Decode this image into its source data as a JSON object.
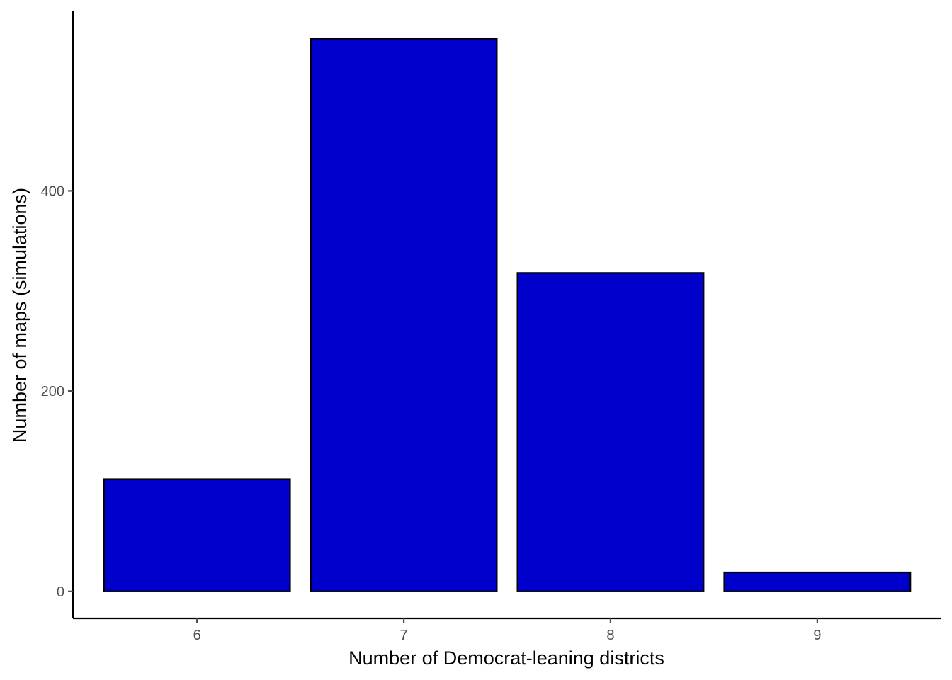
{
  "chart_data": {
    "type": "bar",
    "title": "",
    "xlabel": "Number of Democrat-leaning districts",
    "ylabel": "Number of maps (simulations)",
    "categories": [
      "6",
      "7",
      "8",
      "9"
    ],
    "values": [
      112,
      552,
      318,
      19
    ],
    "yticks": [
      0,
      200,
      400
    ],
    "ylim": [
      -27,
      580
    ],
    "grid": false,
    "legend": "none",
    "colors": {
      "bar_fill": "#0000CD",
      "bar_stroke": "#000000",
      "axis": "#000000",
      "tick_text": "#4d4d4d"
    }
  }
}
